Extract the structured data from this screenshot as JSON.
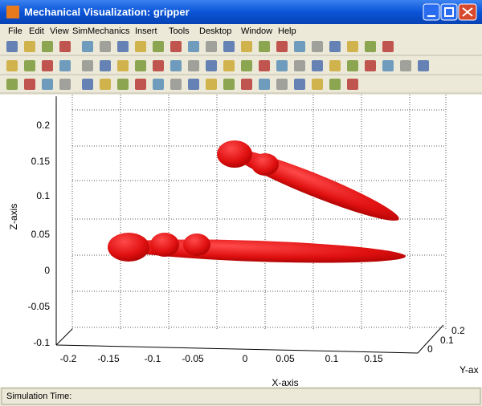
{
  "window": {
    "title": "Mechanical Visualization: gripper"
  },
  "menu": [
    "File",
    "Edit",
    "View",
    "SimMechanics",
    "Insert",
    "Tools",
    "Desktop",
    "Window",
    "Help"
  ],
  "plot": {
    "z_ticks": [
      "0.2",
      "0.15",
      "0.1",
      "0.05",
      "0",
      "-0.05",
      "-0.1"
    ],
    "x_ticks": [
      "-0.2",
      "-0.15",
      "-0.1",
      "-0.05",
      "0",
      "0.05",
      "0.1",
      "0.15"
    ],
    "y_ticks": [
      "0.2",
      "0.1",
      "0"
    ],
    "x_label": "X-axis",
    "y_label": "Y-ax",
    "z_label": "Z-axis"
  },
  "status": {
    "label": "Simulation Time:"
  }
}
